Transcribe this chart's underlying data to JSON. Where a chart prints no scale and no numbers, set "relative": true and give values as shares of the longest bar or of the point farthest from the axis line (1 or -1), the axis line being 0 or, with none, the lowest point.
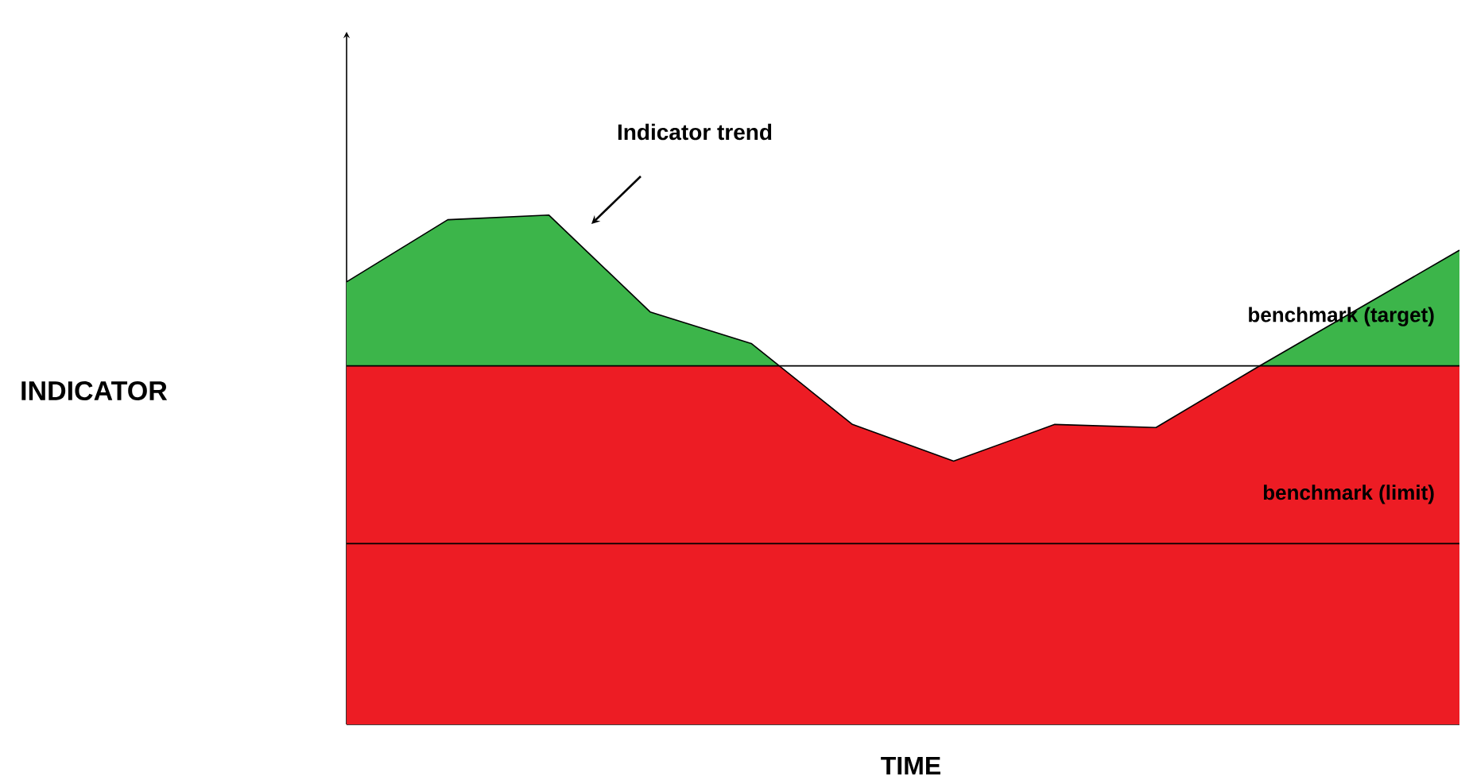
{
  "chart_data": {
    "type": "area",
    "relative": true,
    "xlabel": "TIME",
    "categories": [
      null,
      null,
      null,
      null,
      null,
      null,
      null,
      null,
      null,
      null,
      null,
      null
    ],
    "series": [
      {
        "color": "#3cb54a",
        "values": [
          0.869,
          0.991,
          1,
          0.81,
          0.748,
          0.589,
          0.517,
          0.589,
          0.583,
          0.701,
          0.816,
          0.931
        ]
      }
    ],
    "bands": [
      {
        "axis": "y",
        "from": 0,
        "to": 0.704,
        "color": "#ed1c24"
      }
    ],
    "ref_lines": [
      {
        "axis": "y",
        "value": 0.704,
        "label": "benchmark (target)"
      },
      {
        "axis": "y",
        "value": 0.355,
        "label": "benchmark (limit)"
      }
    ],
    "annotations": [
      "Indicator trend",
      "INDICATOR"
    ]
  }
}
